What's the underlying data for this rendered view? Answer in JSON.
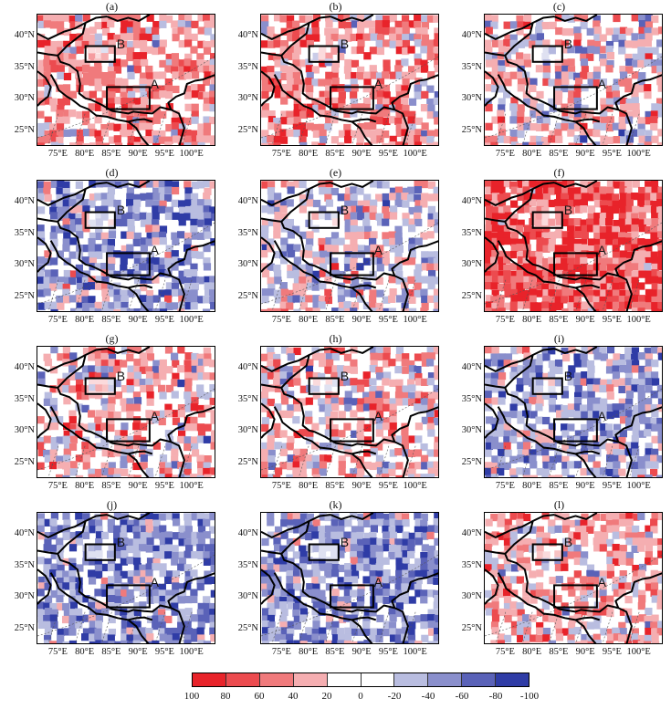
{
  "panels": [
    {
      "label": "(a)",
      "region_a": "A",
      "region_b": "B",
      "bias": 0.35,
      "seed": 11
    },
    {
      "label": "(b)",
      "region_a": "A",
      "region_b": "B",
      "bias": 0.3,
      "seed": 23
    },
    {
      "label": "(c)",
      "region_a": "A",
      "region_b": "B",
      "bias": 0.05,
      "seed": 37
    },
    {
      "label": "(d)",
      "region_a": "A",
      "region_b": "B",
      "bias": -0.3,
      "seed": 41
    },
    {
      "label": "(e)",
      "region_a": "A",
      "region_b": "B",
      "bias": -0.1,
      "seed": 53
    },
    {
      "label": "(f)",
      "region_a": "A",
      "region_b": "B",
      "bias": 0.7,
      "seed": 67
    },
    {
      "label": "(g)",
      "region_a": "A",
      "region_b": "B",
      "bias": 0.15,
      "seed": 71
    },
    {
      "label": "(h)",
      "region_a": "A",
      "region_b": "B",
      "bias": 0.1,
      "seed": 83
    },
    {
      "label": "(i)",
      "region_a": "A",
      "region_b": "B",
      "bias": -0.25,
      "seed": 97
    },
    {
      "label": "(j)",
      "region_a": "A",
      "region_b": "B",
      "bias": -0.45,
      "seed": 101
    },
    {
      "label": "(k)",
      "region_a": "A",
      "region_b": "B",
      "bias": -0.4,
      "seed": 113
    },
    {
      "label": "(l)",
      "region_a": "A",
      "region_b": "B",
      "bias": 0.2,
      "seed": 127
    }
  ],
  "axes": {
    "lat_ticks": [
      "40°N",
      "35°N",
      "30°N",
      "25°N"
    ],
    "lon_ticks": [
      "75°E",
      "80°E",
      "85°E",
      "90°E",
      "95°E",
      "100°E"
    ]
  },
  "colorbar": {
    "ticks": [
      "100",
      "80",
      "60",
      "40",
      "20",
      "0",
      "-20",
      "-40",
      "-60",
      "-80",
      "-100"
    ],
    "colors": [
      "#e8232a",
      "#ec4b4f",
      "#f07a7c",
      "#f5aeb1",
      "#ffffff",
      "#ffffff",
      "#b9bde0",
      "#8a8fcc",
      "#5a62b8",
      "#2f3ca6"
    ]
  }
}
